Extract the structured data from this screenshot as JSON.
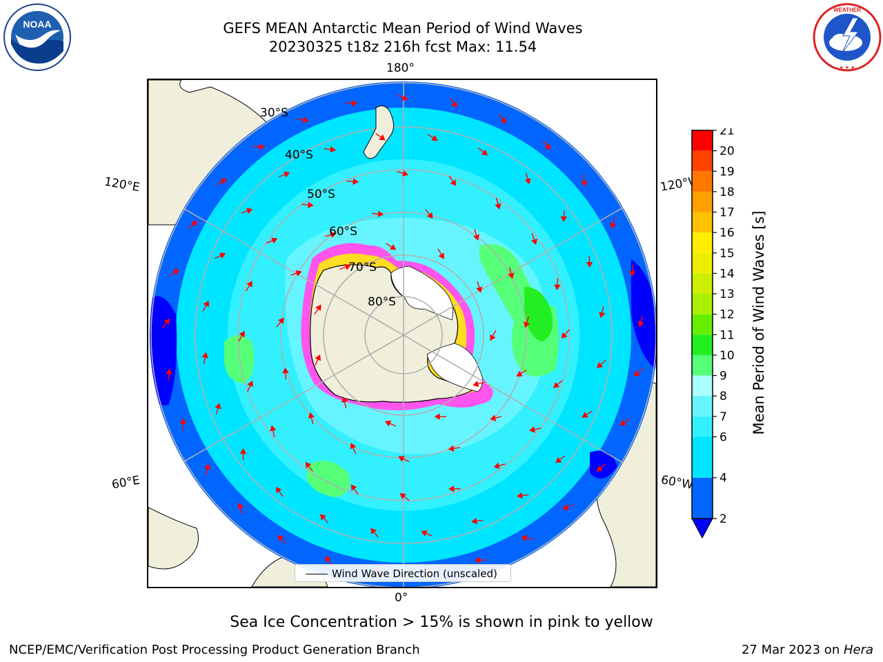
{
  "header": {
    "title_line1": "GEFS MEAN Antarctic Mean Period of Wind Waves",
    "title_line2": "20230325 t18z 216h fcst   Max: 11.54"
  },
  "logos": {
    "left": {
      "name": "NOAA",
      "ring_text": "NATIONAL OCEANIC AND ATMOSPHERIC ADMINISTRATION · U.S. DEPARTMENT OF COMMERCE"
    },
    "right": {
      "name": "NATIONAL WEATHER SERVICE"
    }
  },
  "map": {
    "longitude_labels": {
      "top": "180°",
      "bottom": "0°",
      "left_upper": "120°E",
      "left_lower": "60°E",
      "right_upper": "120°W",
      "right_lower": "60°W"
    },
    "latitude_labels": [
      "30°S",
      "40°S",
      "50°S",
      "60°S",
      "70°S",
      "80°S"
    ],
    "legend_label": "Wind Wave Direction (unscaled)",
    "colors": {
      "land": "#efefdb",
      "ice_pink": "#ff55ee",
      "ice_yellow": "#ffdd22",
      "arrow": "#ff0000",
      "grid": "#b0b0b0"
    }
  },
  "colorbar": {
    "label": "Mean Period of Wind Waves [s]",
    "ticks": [
      "2",
      "4",
      "6",
      "7",
      "8",
      "9",
      "10",
      "11",
      "12",
      "13",
      "14",
      "15",
      "16",
      "17",
      "18",
      "19",
      "20",
      "21"
    ],
    "bins": [
      {
        "from": 2,
        "to": 4,
        "color": "#0066ff"
      },
      {
        "from": 4,
        "to": 6,
        "color": "#00e5ff"
      },
      {
        "from": 6,
        "to": 7,
        "color": "#33f0ff"
      },
      {
        "from": 7,
        "to": 8,
        "color": "#66f5ff"
      },
      {
        "from": 8,
        "to": 9,
        "color": "#aaffff"
      },
      {
        "from": 9,
        "to": 10,
        "color": "#55ff77"
      },
      {
        "from": 10,
        "to": 11,
        "color": "#22ee22"
      },
      {
        "from": 11,
        "to": 12,
        "color": "#66ee00"
      },
      {
        "from": 12,
        "to": 13,
        "color": "#aaee00"
      },
      {
        "from": 13,
        "to": 14,
        "color": "#ccee00"
      },
      {
        "from": 14,
        "to": 15,
        "color": "#eeee00"
      },
      {
        "from": 15,
        "to": 16,
        "color": "#ffee00"
      },
      {
        "from": 16,
        "to": 17,
        "color": "#ffc000"
      },
      {
        "from": 17,
        "to": 18,
        "color": "#ffa000"
      },
      {
        "from": 18,
        "to": 19,
        "color": "#ff7700"
      },
      {
        "from": 19,
        "to": 20,
        "color": "#ff4400"
      },
      {
        "from": 20,
        "to": 21,
        "color": "#ff0000"
      }
    ],
    "under_color": "#0000ff"
  },
  "caption": "Sea Ice Concentration > 15% is shown in pink to yellow",
  "footer": {
    "left": "NCEP/EMC/Verification Post Processing Product Generation Branch",
    "right_date": "27 Mar 2023 on ",
    "right_machine": "Hera"
  }
}
